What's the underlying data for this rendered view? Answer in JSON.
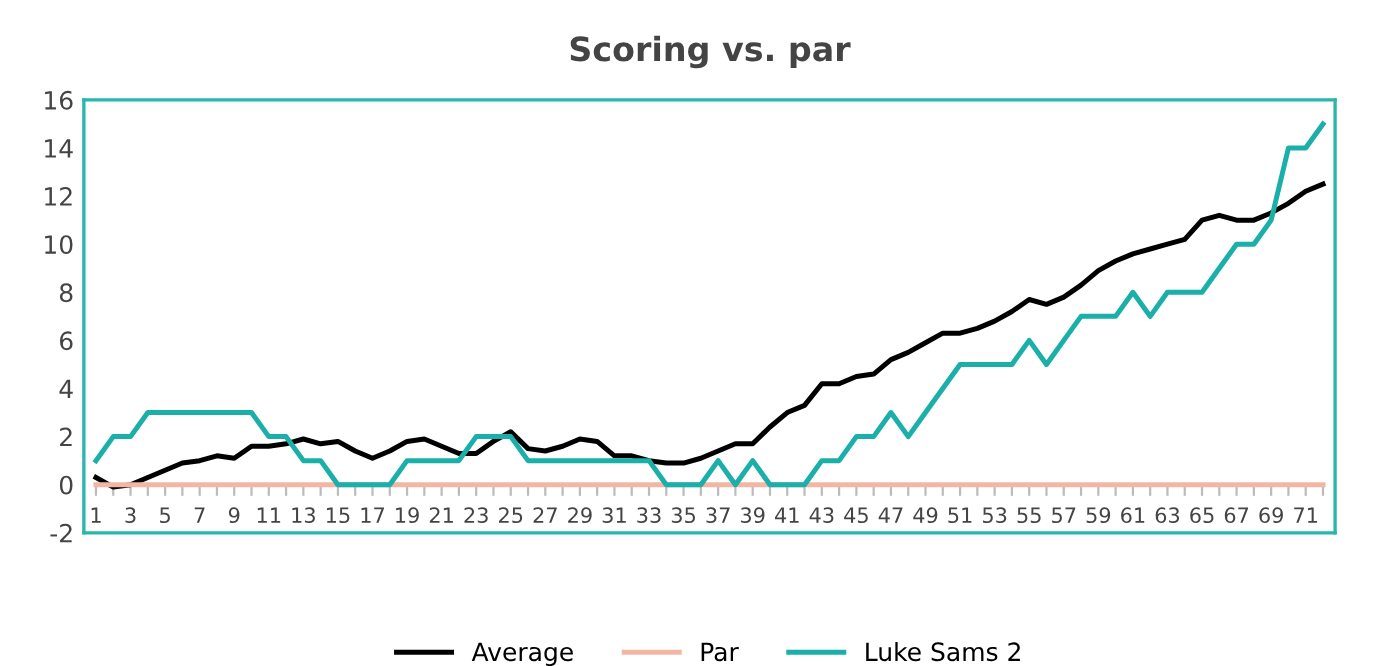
{
  "chart_data": {
    "type": "line",
    "title": "Scoring vs. par",
    "categories": [
      "1",
      null,
      "3",
      null,
      "5",
      null,
      "7",
      null,
      "9",
      null,
      "11",
      null,
      "13",
      null,
      "15",
      null,
      "17",
      null,
      "19",
      null,
      "21",
      null,
      "23",
      null,
      "25",
      null,
      "27",
      null,
      "29",
      null,
      "31",
      null,
      "33",
      null,
      "35",
      null,
      "37",
      null,
      "39",
      null,
      "41",
      null,
      "43",
      null,
      "45",
      null,
      "47",
      null,
      "49",
      null,
      "51",
      null,
      "53",
      null,
      "55",
      null,
      "57",
      null,
      "59",
      null,
      "61",
      null,
      "63",
      null,
      "65",
      null,
      "67",
      null,
      "69",
      null,
      "71",
      null
    ],
    "series": [
      {
        "name": "Average",
        "color": "#000000",
        "values": [
          0.3,
          -0.1,
          0,
          0.3,
          0.6,
          0.9,
          1.0,
          1.2,
          1.1,
          1.6,
          1.6,
          1.7,
          1.9,
          1.7,
          1.8,
          1.4,
          1.1,
          1.4,
          1.8,
          1.9,
          1.6,
          1.3,
          1.3,
          1.8,
          2.2,
          1.5,
          1.4,
          1.6,
          1.9,
          1.8,
          1.2,
          1.2,
          1.0,
          0.9,
          0.9,
          1.1,
          1.4,
          1.7,
          1.7,
          2.4,
          3.0,
          3.3,
          4.2,
          4.2,
          4.5,
          4.6,
          5.2,
          5.5,
          5.9,
          6.3,
          6.3,
          6.5,
          6.8,
          7.2,
          7.7,
          7.5,
          7.8,
          8.3,
          8.9,
          9.3,
          9.6,
          9.8,
          10.0,
          10.2,
          11.0,
          11.2,
          11.0,
          11.0,
          11.3,
          11.7,
          12.2,
          12.5
        ]
      },
      {
        "name": "Par",
        "color": "#f4b6a4",
        "values": [
          0,
          0,
          0,
          0,
          0,
          0,
          0,
          0,
          0,
          0,
          0,
          0,
          0,
          0,
          0,
          0,
          0,
          0,
          0,
          0,
          0,
          0,
          0,
          0,
          0,
          0,
          0,
          0,
          0,
          0,
          0,
          0,
          0,
          0,
          0,
          0,
          0,
          0,
          0,
          0,
          0,
          0,
          0,
          0,
          0,
          0,
          0,
          0,
          0,
          0,
          0,
          0,
          0,
          0,
          0,
          0,
          0,
          0,
          0,
          0,
          0,
          0,
          0,
          0,
          0,
          0,
          0,
          0,
          0,
          0,
          0,
          0
        ]
      },
      {
        "name": "Luke Sams 2",
        "color": "#1aafa8",
        "values": [
          1,
          2,
          2,
          3,
          3,
          3,
          3,
          3,
          3,
          3,
          2,
          2,
          1,
          1,
          0,
          0,
          0,
          0,
          1,
          1,
          1,
          1,
          2,
          2,
          2,
          1,
          1,
          1,
          1,
          1,
          1,
          1,
          1,
          0,
          0,
          0,
          1,
          0,
          1,
          0,
          0,
          0,
          1,
          1,
          2,
          2,
          3,
          2,
          3,
          4,
          5,
          5,
          5,
          5,
          6,
          5,
          6,
          7,
          7,
          7,
          8,
          7,
          8,
          8,
          8,
          9,
          10,
          10,
          11,
          14,
          14,
          15
        ]
      }
    ],
    "ylim": [
      -2,
      16
    ],
    "yticks": [
      -2,
      0,
      2,
      4,
      6,
      8,
      10,
      12,
      14,
      16
    ],
    "grid": false,
    "legend": "bottom",
    "marker": "none",
    "line_style": "solid"
  }
}
